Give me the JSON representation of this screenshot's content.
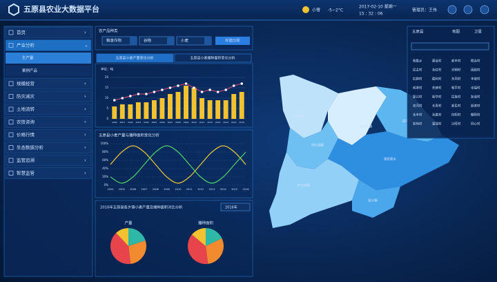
{
  "header": {
    "title": "五原县农业大数据平台",
    "weather": "小雪",
    "temperature": "-5~2°C",
    "date": "2017-02-10 星期一",
    "time": "15 : 32 : 06",
    "user": "管理员：王伟"
  },
  "sidebar": {
    "items": [
      "首页",
      "产业分析",
      "规模经营",
      "防灾减灾",
      "土地流转",
      "农技咨询",
      "价格行情",
      "生态数据分析",
      "监管追溯",
      "智慧监管"
    ],
    "subitems": [
      "生产量",
      "案例产品"
    ]
  },
  "filters": {
    "label": "农产品种类",
    "options": [
      "粮食作物",
      "谷物",
      "小麦"
    ],
    "button": "开始分析"
  },
  "tabs": [
    "五原县小麦产量变化分析",
    "五原县小麦播种面积变化分析"
  ],
  "chart_data": [
    {
      "type": "bar",
      "y_label": "单位：吨",
      "categories": [
        "2000",
        "2001",
        "2002",
        "2003",
        "2004",
        "2005",
        "2006",
        "2007",
        "2008",
        "2009",
        "2010",
        "2011",
        "2012",
        "2013",
        "2014",
        "2015",
        "2016"
      ],
      "series": [
        {
          "type": "bar",
          "color": "#f2c230",
          "values": [
            6,
            7,
            7,
            8,
            8,
            9,
            10,
            12,
            13,
            16,
            15,
            10,
            9,
            9,
            9,
            12,
            13
          ]
        },
        {
          "type": "line",
          "color": "#e0457b",
          "values": [
            9,
            10,
            11,
            12,
            12,
            13,
            14,
            15,
            16,
            17,
            15,
            13,
            14,
            13,
            14,
            16,
            17
          ]
        }
      ],
      "ylim": [
        0,
        20
      ],
      "yticks": [
        0,
        5,
        10,
        15,
        20
      ],
      "grid": true
    },
    {
      "type": "line",
      "title": "五原县小麦产量与播种面积变化分析",
      "categories": [
        "2004",
        "2005",
        "2006",
        "2007",
        "2008",
        "2009",
        "2010",
        "2011",
        "2012",
        "2013",
        "2014",
        "2015",
        "2016"
      ],
      "series": [
        {
          "color": "#e8c83a",
          "values": [
            50,
            80,
            95,
            80,
            50,
            20,
            5,
            20,
            50,
            80,
            95,
            80,
            50
          ]
        },
        {
          "color": "#4cd46a",
          "values": [
            20,
            5,
            20,
            50,
            80,
            95,
            80,
            50,
            20,
            5,
            20,
            50,
            80
          ]
        }
      ],
      "ylim": [
        0,
        100
      ],
      "yticks": [
        {
          "value": 0,
          "label": "0%"
        },
        {
          "value": 20,
          "label": "20%"
        },
        {
          "value": 40,
          "label": "40%"
        },
        {
          "value": 60,
          "label": "60%"
        },
        {
          "value": 80,
          "label": "80%"
        },
        {
          "value": 100,
          "label": "100%"
        }
      ],
      "grid": true
    },
    {
      "type": "pie",
      "title": "产量",
      "values": [
        20,
        28,
        40,
        12
      ],
      "colors": [
        "#2fb8a8",
        "#f28a30",
        "#e8444c",
        "#f2c230"
      ]
    },
    {
      "type": "pie",
      "title": "播种面积",
      "values": [
        18,
        30,
        38,
        14
      ],
      "colors": [
        "#2fb8a8",
        "#f28a30",
        "#e8444c",
        "#f2c230"
      ]
    }
  ],
  "pie_panel": {
    "title": "2016年五原县各乡镇小麦产量及播种面积对比分析",
    "select": "2016年"
  },
  "map": {
    "regions": [
      "隆兴昌镇",
      "新公中镇",
      "胜丰镇",
      "塔尔湖镇",
      "天吉泰镇",
      "银定图乡",
      "复兴镇"
    ]
  },
  "right_panel": {
    "title": "五原县",
    "tabs": [
      "地图",
      "卫星"
    ],
    "villages": [
      "和胜乡",
      "建设村",
      "新丰村",
      "联合村",
      "民主村",
      "永红村",
      "光明村",
      "团结村",
      "红旗村",
      "胜利村",
      "东风村",
      "丰收村",
      "前进村",
      "先锋村",
      "和平村",
      "幸福村",
      "复兴村",
      "新华村",
      "民族村",
      "友谊村",
      "双河村",
      "长青村",
      "新民村",
      "跃进村",
      "永丰村",
      "永胜村",
      "向阳村",
      "朝阳村",
      "宏伟村",
      "富强村",
      "兴旺村",
      "同心村"
    ]
  }
}
